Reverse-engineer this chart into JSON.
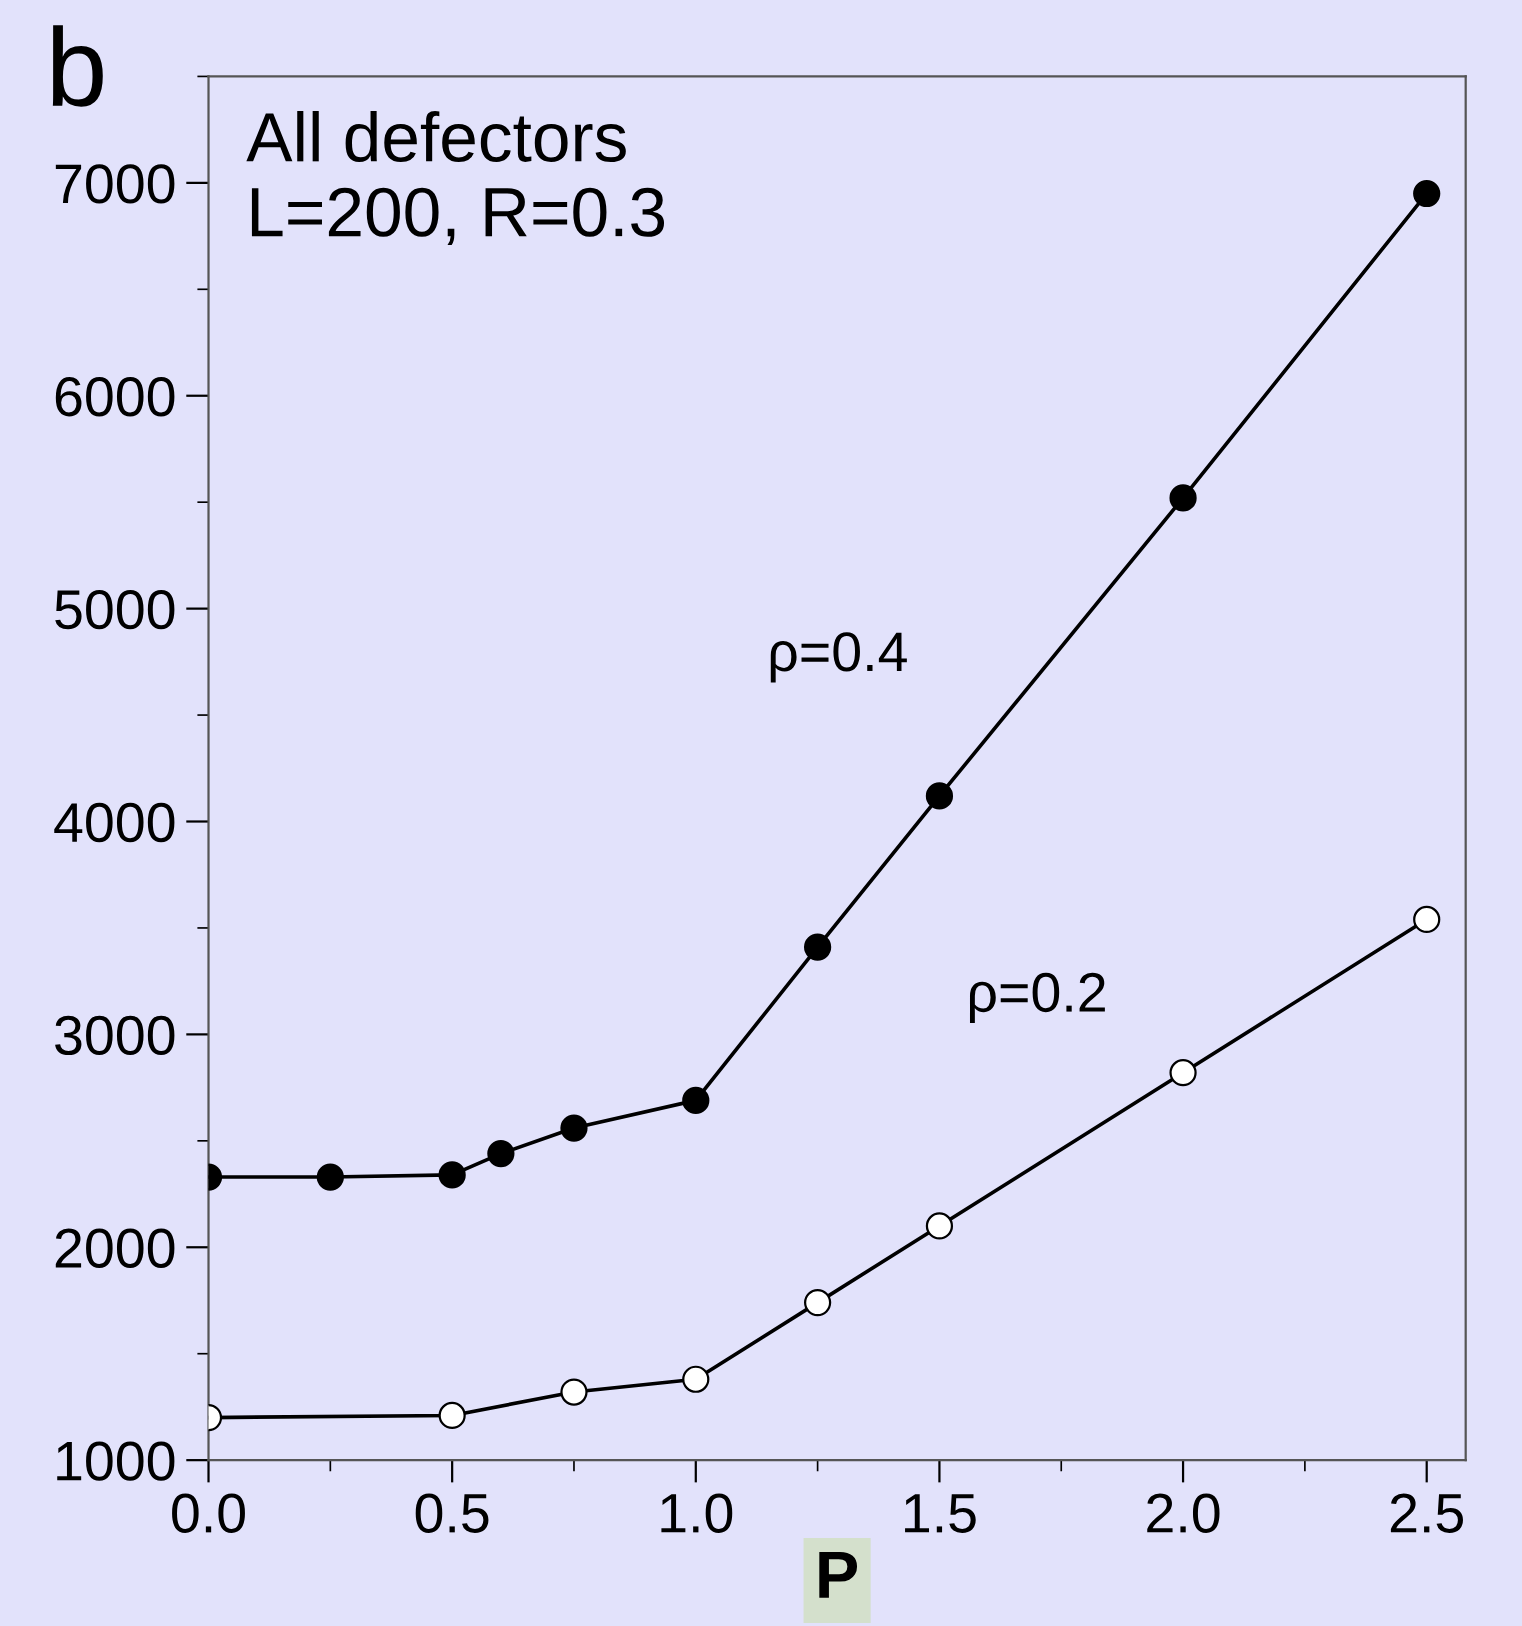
{
  "chart_data": {
    "type": "line",
    "xlabel": "P",
    "x": [
      0,
      0.25,
      0.5,
      0.6,
      0.75,
      1.0,
      1.25,
      1.5,
      2.0,
      2.5
    ],
    "series": [
      {
        "name": "ρ=0.4",
        "color": "#000000",
        "values": [
          2330,
          2330,
          2340,
          2440,
          2560,
          2690,
          3410,
          4120,
          5520,
          6950
        ]
      },
      {
        "name": "ρ=0.2",
        "color": "#000000",
        "x": [
          0,
          0.5,
          0.75,
          1.0,
          1.25,
          1.5,
          2.0,
          2.5
        ],
        "values": [
          1200,
          1210,
          1320,
          1380,
          1740,
          2100,
          2820,
          3540
        ]
      }
    ],
    "annotations": [
      "b",
      "All defectors\nL=200, R=0.3"
    ],
    "xlim": [
      0,
      2.58
    ],
    "ylim": [
      1000,
      7500
    ],
    "xticks": [
      {
        "value": 0,
        "label": "0.0"
      },
      {
        "value": 0.5,
        "label": "0.5"
      },
      {
        "value": 1.0,
        "label": "1.0"
      },
      {
        "value": 1.5,
        "label": "1.5"
      },
      {
        "value": 2.0,
        "label": "2.0"
      },
      {
        "value": 2.5,
        "label": "2.5"
      }
    ],
    "yticks": [
      1000,
      2000,
      3000,
      4000,
      5000,
      6000,
      7000
    ],
    "grid": false,
    "legend": false,
    "marker": "circle",
    "line_style": "solid"
  }
}
